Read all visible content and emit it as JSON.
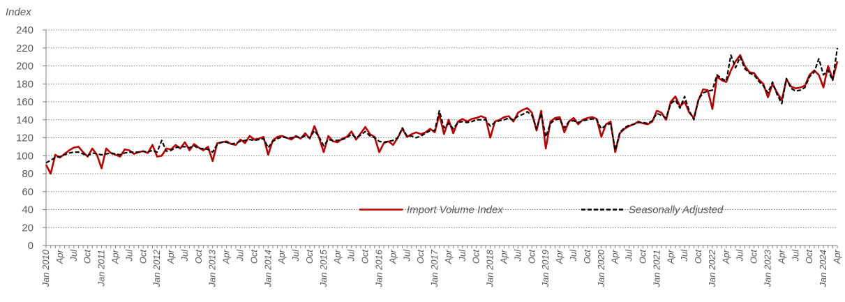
{
  "chart_data": {
    "type": "line",
    "y_label": "Index",
    "categories": [
      "Jan 2010",
      null,
      null,
      "Apr",
      null,
      null,
      "Jul",
      null,
      null,
      "Oct",
      null,
      null,
      "Jan 2011",
      null,
      null,
      "Apr",
      null,
      null,
      "Jul",
      null,
      null,
      "Oct",
      null,
      null,
      "Jan 2012",
      null,
      null,
      "Apr",
      null,
      null,
      "Jul",
      null,
      null,
      "Oct",
      null,
      null,
      "Jan 2013",
      null,
      null,
      "Apr",
      null,
      null,
      "Jul",
      null,
      null,
      "Oct",
      null,
      null,
      "Jan 2014",
      null,
      null,
      "Apr",
      null,
      null,
      "Jul",
      null,
      null,
      "Oct",
      null,
      null,
      "Jan 2015",
      null,
      null,
      "Apr",
      null,
      null,
      "Jul",
      null,
      null,
      "Oct",
      null,
      null,
      "Jan 2016",
      null,
      null,
      "Apr",
      null,
      null,
      "Jul",
      null,
      null,
      "Oct",
      null,
      null,
      "Jan 2017",
      null,
      null,
      "Apr",
      null,
      null,
      "Jul",
      null,
      null,
      "Oct",
      null,
      null,
      "Jan 2018",
      null,
      null,
      "Apr",
      null,
      null,
      "Jul",
      null,
      null,
      "Oct",
      null,
      null,
      "Jan 2019",
      null,
      null,
      "Apr",
      null,
      null,
      "Jul",
      null,
      null,
      "Oct",
      null,
      null,
      "Jan 2020",
      null,
      null,
      "Apr",
      null,
      null,
      "Jul",
      null,
      null,
      "Oct",
      null,
      null,
      "Jan 2021",
      null,
      null,
      "Apr",
      null,
      null,
      "Jul",
      null,
      null,
      "Oct",
      null,
      null,
      "Jan 2022",
      null,
      null,
      "Apr",
      null,
      null,
      "Jul",
      null,
      null,
      "Oct",
      null,
      null,
      "Jan 2023",
      null,
      null,
      "Apr",
      null,
      null,
      "Jul",
      null,
      null,
      "Oct",
      null,
      null,
      "Jan 2024",
      null,
      null,
      "Apr"
    ],
    "series": [
      {
        "name": "Import Volume Index",
        "color": "#c00000",
        "dashed": false,
        "values": [
          90,
          80,
          101,
          98,
          102,
          106,
          109,
          110,
          104,
          99,
          108,
          101,
          86,
          108,
          103,
          101,
          99,
          107,
          106,
          102,
          104,
          105,
          103,
          112,
          99,
          100,
          108,
          107,
          112,
          108,
          115,
          106,
          113,
          109,
          106,
          110,
          94,
          114,
          115,
          116,
          113,
          112,
          118,
          114,
          122,
          118,
          119,
          121,
          101,
          117,
          121,
          122,
          120,
          118,
          122,
          119,
          125,
          119,
          133,
          120,
          104,
          122,
          116,
          115,
          119,
          121,
          127,
          118,
          125,
          132,
          124,
          121,
          104,
          114,
          116,
          112,
          120,
          130,
          121,
          124,
          126,
          124,
          126,
          130,
          126,
          146,
          124,
          140,
          125,
          138,
          141,
          138,
          141,
          142,
          144,
          142,
          120,
          138,
          140,
          143,
          144,
          138,
          148,
          151,
          153,
          148,
          128,
          150,
          108,
          138,
          142,
          143,
          126,
          138,
          142,
          135,
          140,
          142,
          143,
          141,
          121,
          135,
          138,
          104,
          125,
          130,
          133,
          135,
          138,
          136,
          135,
          138,
          150,
          148,
          140,
          160,
          166,
          155,
          160,
          148,
          142,
          162,
          174,
          173,
          152,
          188,
          184,
          182,
          195,
          205,
          212,
          200,
          193,
          192,
          185,
          180,
          165,
          180,
          170,
          162,
          185,
          177,
          175,
          176,
          178,
          190,
          195,
          190,
          176,
          200,
          185,
          205
        ]
      },
      {
        "name": "Seasonally Adjusted",
        "color": "#000000",
        "dashed": true,
        "values": [
          92,
          95,
          98,
          99,
          101,
          103,
          104,
          104,
          102,
          100,
          103,
          102,
          101,
          102,
          103,
          102,
          101,
          103,
          104,
          104,
          104,
          105,
          104,
          106,
          104,
          117,
          105,
          106,
          109,
          110,
          110,
          109,
          111,
          108,
          108,
          107,
          104,
          113,
          115,
          115,
          113,
          114,
          116,
          117,
          118,
          117,
          118,
          119,
          109,
          116,
          119,
          121,
          120,
          120,
          121,
          120,
          122,
          120,
          128,
          121,
          111,
          118,
          117,
          117,
          118,
          120,
          124,
          120,
          123,
          127,
          122,
          120,
          116,
          115,
          116,
          117,
          120,
          131,
          122,
          122,
          120,
          122,
          125,
          128,
          128,
          150,
          131,
          136,
          130,
          137,
          138,
          137,
          138,
          140,
          140,
          140,
          133,
          137,
          139,
          140,
          142,
          140,
          144,
          146,
          149,
          145,
          130,
          147,
          121,
          136,
          140,
          141,
          131,
          138,
          139,
          137,
          139,
          140,
          141,
          140,
          130,
          134,
          136,
          106,
          126,
          131,
          134,
          135,
          137,
          137,
          136,
          139,
          147,
          145,
          142,
          158,
          162,
          153,
          166,
          150,
          140,
          163,
          170,
          172,
          173,
          190,
          186,
          183,
          212,
          198,
          210,
          197,
          192,
          190,
          183,
          178,
          170,
          182,
          168,
          158,
          186,
          175,
          172,
          173,
          176,
          188,
          193,
          208,
          190,
          195,
          184,
          220
        ]
      }
    ],
    "ylim": [
      0,
      240
    ],
    "yticks": [
      0,
      20,
      40,
      60,
      80,
      100,
      120,
      140,
      160,
      180,
      200,
      220,
      240
    ],
    "grid": true
  }
}
